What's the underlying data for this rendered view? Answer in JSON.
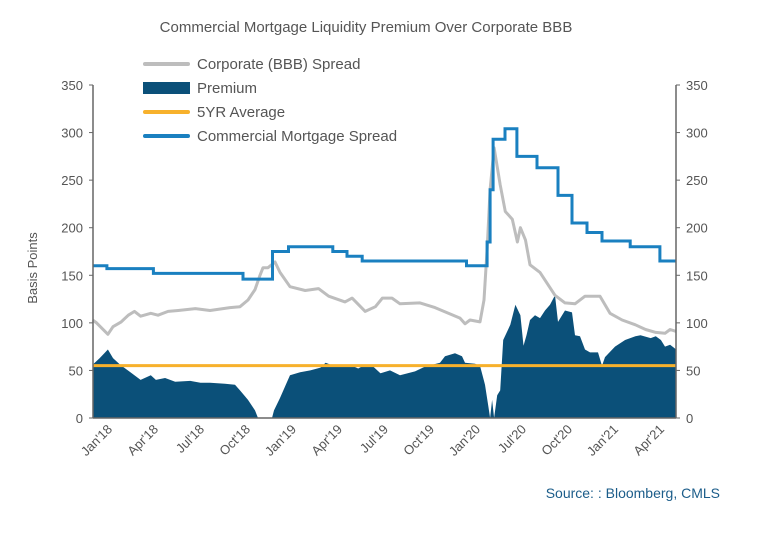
{
  "chart_data": {
    "type": "line",
    "title": "Commercial Mortgage Liquidity Premium Over Corporate BBB",
    "ylabel": "Basis Points",
    "ylim": [
      0,
      350
    ],
    "yticks": [
      0,
      50,
      100,
      150,
      200,
      250,
      300,
      350
    ],
    "secondary_ylim": [
      0,
      350
    ],
    "xlim": [
      "2017-11-22",
      "2021-04-23"
    ],
    "xticks": [
      {
        "label": "Jan'18",
        "date": "2018-01-01"
      },
      {
        "label": "Apr'18",
        "date": "2018-04-01"
      },
      {
        "label": "Jul'18",
        "date": "2018-07-01"
      },
      {
        "label": "Oct'18",
        "date": "2018-10-01"
      },
      {
        "label": "Jan'19",
        "date": "2019-01-01"
      },
      {
        "label": "Apr'19",
        "date": "2019-04-01"
      },
      {
        "label": "Jul'19",
        "date": "2019-07-01"
      },
      {
        "label": "Oct'19",
        "date": "2019-10-01"
      },
      {
        "label": "Jan'20",
        "date": "2020-01-01"
      },
      {
        "label": "Jul'20",
        "date": "2020-07-01"
      },
      {
        "label": "Oct'20",
        "date": "2020-10-01"
      },
      {
        "label": "Jan'21",
        "date": "2021-01-01"
      },
      {
        "label": "Apr'21",
        "date": "2021-04-01"
      }
    ],
    "grid": false,
    "legend_position": "top",
    "source": "Source: : Bloomberg, CMLS",
    "series": [
      {
        "name": "Corporate (BBB) Spread",
        "kind": "line",
        "color": "#bdbdbd",
        "points": [
          [
            "2017-11-22",
            103
          ],
          [
            "2017-11-30",
            100
          ],
          [
            "2017-12-22",
            88
          ],
          [
            "2018-01-01",
            96
          ],
          [
            "2018-01-17",
            101
          ],
          [
            "2018-01-31",
            108
          ],
          [
            "2018-02-12",
            112
          ],
          [
            "2018-02-24",
            107
          ],
          [
            "2018-03-16",
            110
          ],
          [
            "2018-03-30",
            108
          ],
          [
            "2018-04-19",
            112
          ],
          [
            "2018-05-09",
            113
          ],
          [
            "2018-06-12",
            115
          ],
          [
            "2018-07-11",
            113
          ],
          [
            "2018-08-20",
            116
          ],
          [
            "2018-09-09",
            117
          ],
          [
            "2018-09-25",
            124
          ],
          [
            "2018-10-09",
            135
          ],
          [
            "2018-10-19",
            150
          ],
          [
            "2018-10-25",
            158
          ],
          [
            "2018-11-04",
            158
          ],
          [
            "2018-11-18",
            164
          ],
          [
            "2018-11-28",
            153
          ],
          [
            "2018-12-18",
            138
          ],
          [
            "2019-01-17",
            134
          ],
          [
            "2019-02-12",
            136
          ],
          [
            "2019-03-04",
            128
          ],
          [
            "2019-04-05",
            122
          ],
          [
            "2019-04-19",
            126
          ],
          [
            "2019-05-15",
            112
          ],
          [
            "2019-06-04",
            117
          ],
          [
            "2019-06-18",
            126
          ],
          [
            "2019-07-07",
            126
          ],
          [
            "2019-07-23",
            120
          ],
          [
            "2019-09-01",
            121
          ],
          [
            "2019-10-01",
            116
          ],
          [
            "2019-11-20",
            105
          ],
          [
            "2019-11-30",
            99
          ],
          [
            "2019-12-10",
            103
          ],
          [
            "2019-12-30",
            101
          ],
          [
            "2020-01-13",
            124
          ],
          [
            "2020-01-25",
            177
          ],
          [
            "2020-02-06",
            240
          ],
          [
            "2020-02-22",
            284
          ],
          [
            "2020-03-17",
            245
          ],
          [
            "2020-04-06",
            217
          ],
          [
            "2020-05-04",
            209
          ],
          [
            "2020-05-24",
            185
          ],
          [
            "2020-06-05",
            200
          ],
          [
            "2020-06-25",
            187
          ],
          [
            "2020-07-07",
            161
          ],
          [
            "2020-07-27",
            153
          ],
          [
            "2020-08-26",
            129
          ],
          [
            "2020-09-15",
            121
          ],
          [
            "2020-10-05",
            120
          ],
          [
            "2020-10-25",
            128
          ],
          [
            "2020-11-24",
            128
          ],
          [
            "2020-12-14",
            110
          ],
          [
            "2021-01-07",
            103
          ],
          [
            "2021-02-02",
            98
          ],
          [
            "2021-02-22",
            93
          ],
          [
            "2021-03-14",
            90
          ],
          [
            "2021-04-01",
            89
          ],
          [
            "2021-04-11",
            93
          ],
          [
            "2021-04-23",
            91
          ]
        ]
      },
      {
        "name": "Premium",
        "kind": "area",
        "color": "#0b5079",
        "points": [
          [
            "2017-11-22",
            56
          ],
          [
            "2017-12-06",
            63
          ],
          [
            "2017-12-22",
            72
          ],
          [
            "2018-01-01",
            63
          ],
          [
            "2018-01-15",
            56
          ],
          [
            "2018-02-04",
            48
          ],
          [
            "2018-02-24",
            40
          ],
          [
            "2018-03-16",
            45
          ],
          [
            "2018-03-26",
            40
          ],
          [
            "2018-04-13",
            42
          ],
          [
            "2018-05-03",
            38
          ],
          [
            "2018-06-02",
            39
          ],
          [
            "2018-06-22",
            37
          ],
          [
            "2018-07-11",
            37
          ],
          [
            "2018-08-10",
            36
          ],
          [
            "2018-08-30",
            35
          ],
          [
            "2018-09-09",
            29
          ],
          [
            "2018-09-25",
            19
          ],
          [
            "2018-10-09",
            8
          ],
          [
            "2018-10-15",
            0
          ],
          [
            "2018-11-12",
            0
          ],
          [
            "2018-11-16",
            8
          ],
          [
            "2018-11-28",
            21
          ],
          [
            "2018-12-18",
            45
          ],
          [
            "2019-01-07",
            48
          ],
          [
            "2019-01-27",
            50
          ],
          [
            "2019-02-16",
            53
          ],
          [
            "2019-02-26",
            58
          ],
          [
            "2019-03-18",
            54
          ],
          [
            "2019-04-05",
            55
          ],
          [
            "2019-04-19",
            55
          ],
          [
            "2019-05-01",
            52
          ],
          [
            "2019-05-15",
            56
          ],
          [
            "2019-05-29",
            55
          ],
          [
            "2019-06-14",
            47
          ],
          [
            "2019-07-03",
            50
          ],
          [
            "2019-07-23",
            45
          ],
          [
            "2019-08-22",
            49
          ],
          [
            "2019-09-11",
            54
          ],
          [
            "2019-10-11",
            58
          ],
          [
            "2019-10-21",
            65
          ],
          [
            "2019-11-10",
            68
          ],
          [
            "2019-11-24",
            65
          ],
          [
            "2019-11-30",
            58
          ],
          [
            "2019-12-20",
            57
          ],
          [
            "2019-12-30",
            55
          ],
          [
            "2020-01-17",
            35
          ],
          [
            "2020-01-29",
            14
          ],
          [
            "2020-02-06",
            0
          ],
          [
            "2020-02-14",
            19
          ],
          [
            "2020-02-22",
            0
          ],
          [
            "2020-03-05",
            24
          ],
          [
            "2020-03-17",
            29
          ],
          [
            "2020-03-29",
            82
          ],
          [
            "2020-04-26",
            98
          ],
          [
            "2020-05-16",
            119
          ],
          [
            "2020-06-05",
            108
          ],
          [
            "2020-06-17",
            76
          ],
          [
            "2020-06-29",
            87
          ],
          [
            "2020-07-07",
            103
          ],
          [
            "2020-07-17",
            108
          ],
          [
            "2020-07-27",
            105
          ],
          [
            "2020-08-06",
            113
          ],
          [
            "2020-08-16",
            119
          ],
          [
            "2020-08-26",
            129
          ],
          [
            "2020-09-01",
            101
          ],
          [
            "2020-09-15",
            113
          ],
          [
            "2020-09-29",
            111
          ],
          [
            "2020-10-05",
            87
          ],
          [
            "2020-10-15",
            86
          ],
          [
            "2020-10-25",
            72
          ],
          [
            "2020-11-04",
            69
          ],
          [
            "2020-11-20",
            69
          ],
          [
            "2020-11-28",
            55
          ],
          [
            "2020-12-04",
            64
          ],
          [
            "2020-12-24",
            75
          ],
          [
            "2021-01-13",
            82
          ],
          [
            "2021-02-02",
            86
          ],
          [
            "2021-02-12",
            87
          ],
          [
            "2021-03-04",
            84
          ],
          [
            "2021-03-14",
            86
          ],
          [
            "2021-03-24",
            82
          ],
          [
            "2021-04-01",
            75
          ],
          [
            "2021-04-11",
            77
          ],
          [
            "2021-04-23",
            72
          ]
        ]
      },
      {
        "name": "5YR Average",
        "kind": "hline",
        "color": "#f7b12c",
        "value": 55
      },
      {
        "name": "Commercial Mortgage Spread",
        "kind": "step",
        "color": "#1a80c0",
        "points": [
          [
            "2017-11-22",
            160
          ],
          [
            "2017-12-20",
            157
          ],
          [
            "2018-03-21",
            152
          ],
          [
            "2018-09-15",
            146
          ],
          [
            "2018-11-13",
            175
          ],
          [
            "2018-12-15",
            180
          ],
          [
            "2019-03-12",
            175
          ],
          [
            "2019-04-09",
            170
          ],
          [
            "2019-05-09",
            165
          ],
          [
            "2019-12-03",
            160
          ],
          [
            "2020-01-25",
            185
          ],
          [
            "2020-02-06",
            240
          ],
          [
            "2020-02-18",
            293
          ],
          [
            "2020-04-05",
            304
          ],
          [
            "2020-05-22",
            275
          ],
          [
            "2020-07-21",
            263
          ],
          [
            "2020-09-01",
            234
          ],
          [
            "2020-09-29",
            205
          ],
          [
            "2020-10-29",
            195
          ],
          [
            "2020-11-28",
            186
          ],
          [
            "2021-01-23",
            180
          ],
          [
            "2021-03-22",
            165
          ],
          [
            "2021-04-23",
            165
          ]
        ]
      }
    ]
  }
}
